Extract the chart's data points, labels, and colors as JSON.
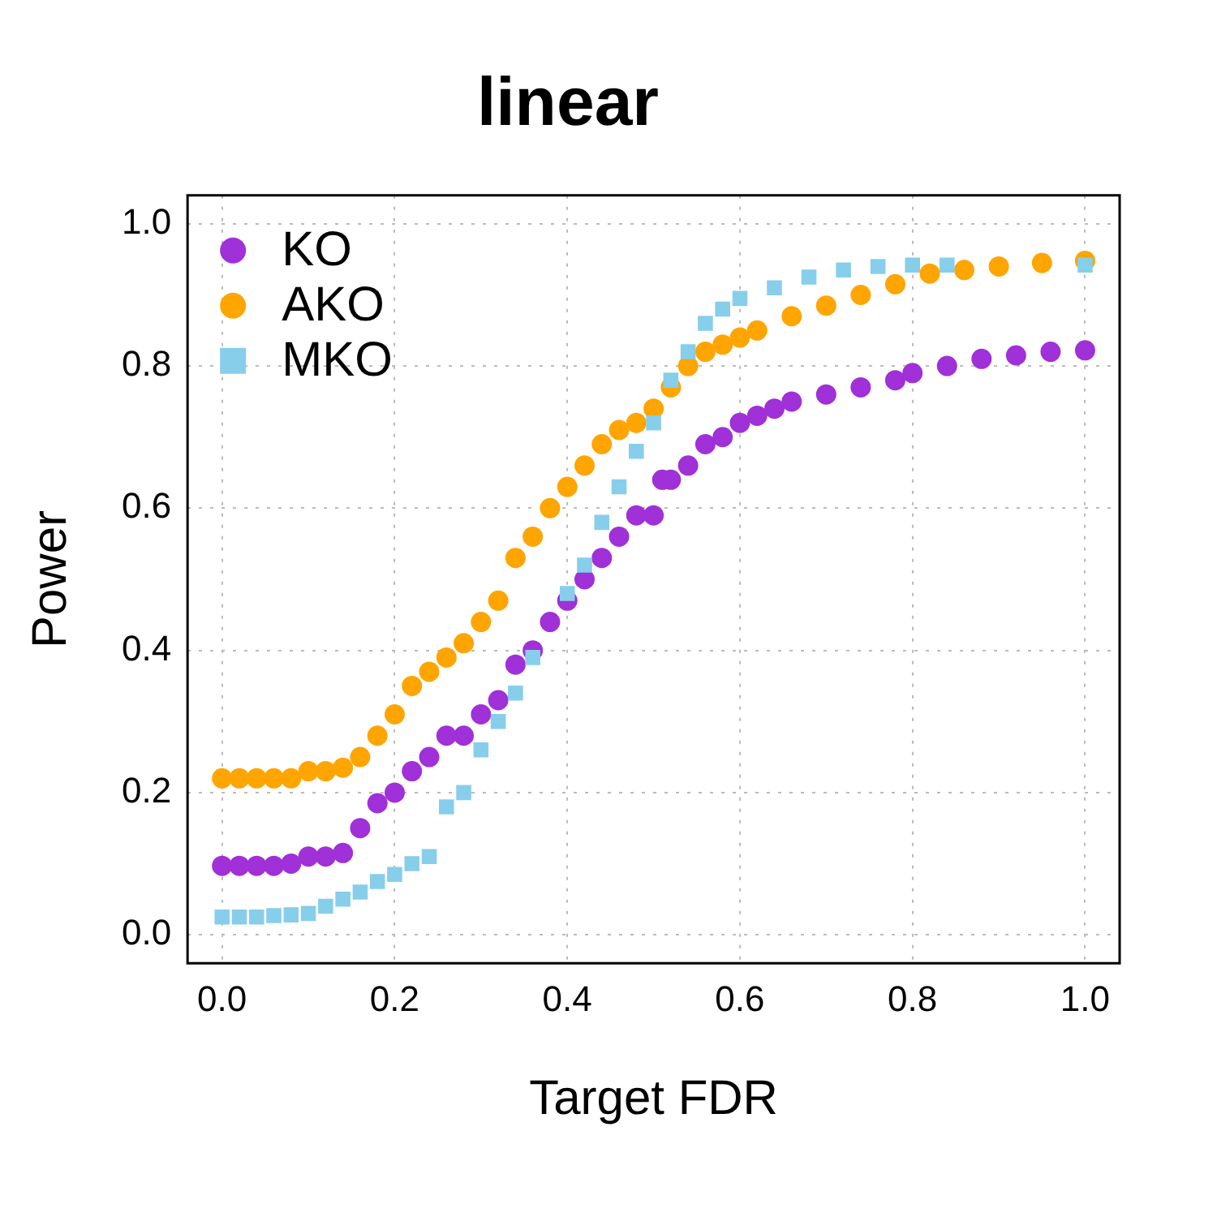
{
  "chart_data": {
    "type": "scatter",
    "title": "linear",
    "xlabel": "Target FDR",
    "ylabel": "Power",
    "xlim": [
      -0.04,
      1.04
    ],
    "ylim": [
      -0.04,
      1.04
    ],
    "xticks": [
      {
        "value": 0,
        "label": "0.0"
      },
      0.2,
      0.4,
      0.6,
      0.8,
      {
        "value": 1,
        "label": "1.0"
      }
    ],
    "yticks": [
      {
        "value": 0,
        "label": "0.0"
      },
      0.2,
      0.4,
      0.6,
      0.8,
      {
        "value": 1,
        "label": "1.0"
      }
    ],
    "grid": true,
    "legend": "top left",
    "series": [
      {
        "name": "KO",
        "color": "#a030d8",
        "marker": "circle",
        "x": [
          0,
          0.02,
          0.04,
          0.06,
          0.08,
          0.1,
          0.12,
          0.14,
          0.16,
          0.18,
          0.2,
          0.22,
          0.24,
          0.26,
          0.28,
          0.3,
          0.32,
          0.34,
          0.36,
          0.38,
          0.4,
          0.42,
          0.44,
          0.46,
          0.48,
          0.5,
          0.51,
          0.52,
          0.54,
          0.56,
          0.58,
          0.6,
          0.62,
          0.64,
          0.66,
          0.7,
          0.74,
          0.78,
          0.8,
          0.84,
          0.88,
          0.92,
          0.96,
          1
        ],
        "values": [
          0.097,
          0.097,
          0.097,
          0.097,
          0.1,
          0.11,
          0.11,
          0.115,
          0.15,
          0.185,
          0.2,
          0.23,
          0.25,
          0.28,
          0.28,
          0.31,
          0.33,
          0.38,
          0.4,
          0.44,
          0.47,
          0.5,
          0.53,
          0.56,
          0.59,
          0.59,
          0.64,
          0.64,
          0.66,
          0.69,
          0.7,
          0.72,
          0.73,
          0.74,
          0.75,
          0.76,
          0.77,
          0.78,
          0.79,
          0.8,
          0.81,
          0.815,
          0.82,
          0.822
        ]
      },
      {
        "name": "AKO",
        "color": "#ffa500",
        "marker": "circle",
        "x": [
          0,
          0.02,
          0.04,
          0.06,
          0.08,
          0.1,
          0.12,
          0.14,
          0.16,
          0.18,
          0.2,
          0.22,
          0.24,
          0.26,
          0.28,
          0.3,
          0.32,
          0.34,
          0.36,
          0.38,
          0.4,
          0.42,
          0.44,
          0.46,
          0.48,
          0.5,
          0.52,
          0.54,
          0.56,
          0.58,
          0.6,
          0.62,
          0.66,
          0.7,
          0.74,
          0.78,
          0.82,
          0.86,
          0.9,
          0.95,
          1
        ],
        "values": [
          0.22,
          0.22,
          0.22,
          0.22,
          0.22,
          0.23,
          0.23,
          0.235,
          0.25,
          0.28,
          0.31,
          0.35,
          0.37,
          0.39,
          0.41,
          0.44,
          0.47,
          0.53,
          0.56,
          0.6,
          0.63,
          0.66,
          0.69,
          0.71,
          0.72,
          0.74,
          0.77,
          0.8,
          0.82,
          0.83,
          0.84,
          0.85,
          0.87,
          0.885,
          0.9,
          0.915,
          0.93,
          0.935,
          0.94,
          0.945,
          0.948
        ]
      },
      {
        "name": "MKO",
        "color": "#87ceeb",
        "marker": "square",
        "x": [
          0,
          0.02,
          0.04,
          0.06,
          0.08,
          0.1,
          0.12,
          0.14,
          0.16,
          0.18,
          0.2,
          0.22,
          0.24,
          0.26,
          0.28,
          0.3,
          0.32,
          0.34,
          0.36,
          0.4,
          0.42,
          0.44,
          0.46,
          0.48,
          0.5,
          0.52,
          0.54,
          0.56,
          0.58,
          0.6,
          0.64,
          0.68,
          0.72,
          0.76,
          0.8,
          0.84,
          1
        ],
        "values": [
          0.025,
          0.025,
          0.025,
          0.027,
          0.028,
          0.03,
          0.04,
          0.05,
          0.06,
          0.075,
          0.085,
          0.1,
          0.11,
          0.18,
          0.2,
          0.26,
          0.3,
          0.34,
          0.39,
          0.48,
          0.52,
          0.58,
          0.63,
          0.68,
          0.72,
          0.78,
          0.82,
          0.86,
          0.88,
          0.895,
          0.91,
          0.925,
          0.935,
          0.94,
          0.942,
          0.942,
          0.942
        ]
      }
    ]
  }
}
